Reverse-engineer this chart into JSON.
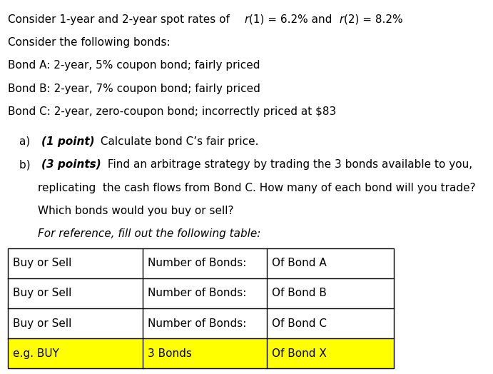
{
  "background_color": "#ffffff",
  "font_size": 11.0,
  "fig_width": 6.91,
  "fig_height": 5.24,
  "dpi": 100,
  "table": {
    "rows": [
      {
        "col1": "Buy or Sell",
        "col2": "Number of Bonds:",
        "col3": "Of Bond A",
        "bg": "#ffffff"
      },
      {
        "col1": "Buy or Sell",
        "col2": "Number of Bonds:",
        "col3": "Of Bond B",
        "bg": "#ffffff"
      },
      {
        "col1": "Buy or Sell",
        "col2": "Number of Bonds:",
        "col3": "Of Bond C",
        "bg": "#ffffff"
      },
      {
        "col1": "e.g. BUY",
        "col2": "3 Bonds",
        "col3": "Of Bond X",
        "bg": "#ffff00"
      }
    ]
  }
}
